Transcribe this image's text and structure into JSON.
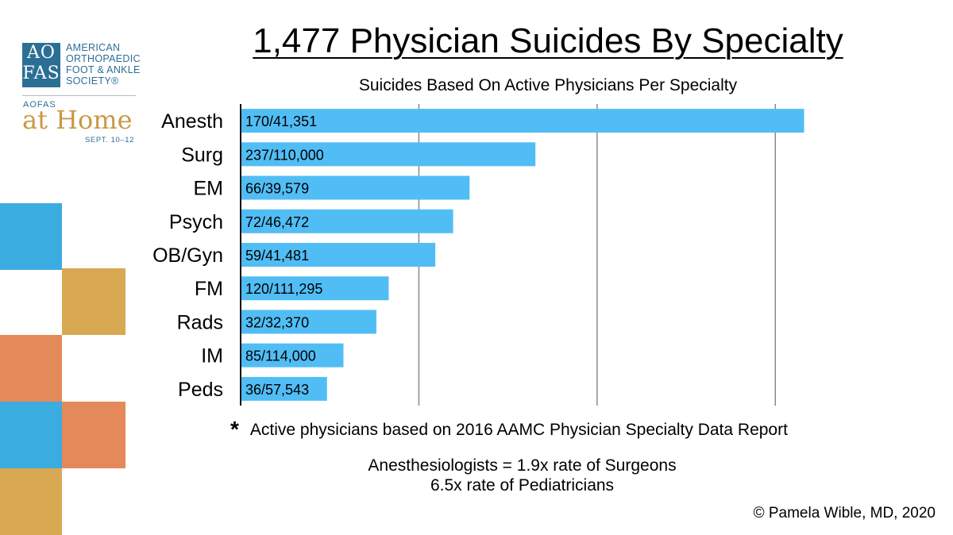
{
  "logo": {
    "mark_top": "AO",
    "mark_bottom": "FAS",
    "org_lines": [
      "AMERICAN",
      "ORTHOPAEDIC",
      "FOOT & ANKLE",
      "SOCIETY®"
    ],
    "event_org": "AOFAS",
    "event_name": "at Home",
    "event_dates": "SEPT. 10–12"
  },
  "colors": {
    "bar": "#51bdf5",
    "axis": "#111111",
    "grid": "#8a8a8a",
    "tile_blue": "#3aace0",
    "tile_gold": "#d8a853",
    "tile_orange": "#e4895a"
  },
  "chart_data": {
    "type": "bar",
    "orientation": "horizontal",
    "title": "1,477 Physician Suicides By Specialty",
    "subtitle": "Suicides Based On Active Physicians Per Specialty",
    "categories": [
      "Anesth",
      "Surg",
      "EM",
      "Psych",
      "OB/Gyn",
      "FM",
      "Rads",
      "IM",
      "Peds"
    ],
    "values": [
      411,
      215,
      167,
      155,
      142,
      108,
      99,
      75,
      63
    ],
    "data_labels": [
      "170/41,351",
      "237/110,000",
      "66/39,579",
      "72/46,472",
      "59/41,481",
      "120/111,295",
      "32/32,370",
      "85/114,000",
      "36/57,543"
    ],
    "xlim": [
      0,
      475
    ],
    "grid": true,
    "legend": "none"
  },
  "footnote": {
    "marker": "*",
    "text": "Active physicians based on 2016 AAMC Physician Specialty Data Report"
  },
  "comparison": {
    "line1": "Anesthesiologists = 1.9x rate of Surgeons",
    "line2": "6.5x rate of Pediatricians"
  },
  "copyright": "© Pamela Wible, MD, 2020"
}
